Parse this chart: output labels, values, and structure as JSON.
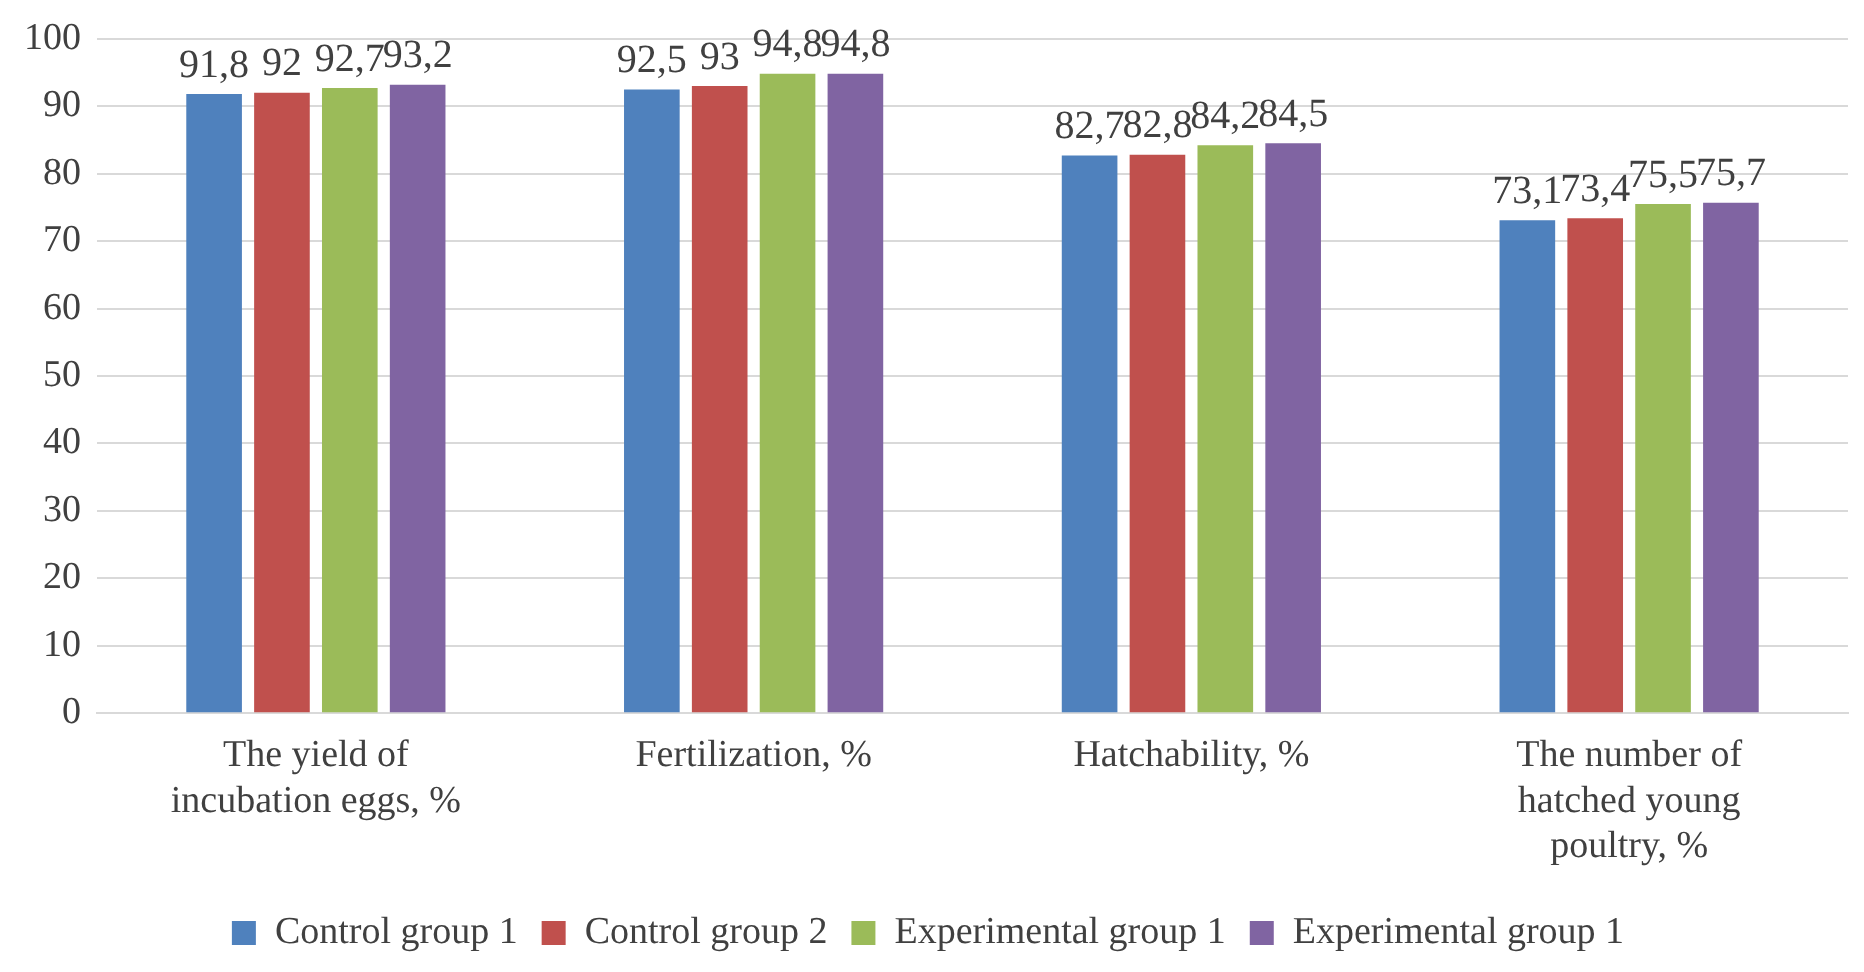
{
  "chart_data": {
    "type": "bar",
    "categories": [
      "The yield of incubation eggs, %",
      "Fertilization, %",
      "Hatchability, %",
      "The number of hatched young poultry, %"
    ],
    "series": [
      {
        "name": "Control group 1",
        "color": "#4f81bd",
        "values": [
          91.8,
          92.5,
          82.7,
          73.1
        ],
        "value_labels": [
          "91,8",
          "92,5",
          "82,7",
          "73,1"
        ]
      },
      {
        "name": "Control group 2",
        "color": "#c0504d",
        "values": [
          92,
          93,
          82.8,
          73.4
        ],
        "value_labels": [
          "92",
          "93",
          "82,8",
          "73,4"
        ]
      },
      {
        "name": "Experimental group 1",
        "color": "#9bbb59",
        "values": [
          92.7,
          94.8,
          84.2,
          75.5
        ],
        "value_labels": [
          "92,7",
          "94,8",
          "84,2",
          "75,5"
        ]
      },
      {
        "name": "Experimental group 1",
        "color": "#8064a2",
        "values": [
          93.2,
          94.8,
          84.5,
          75.7
        ],
        "value_labels": [
          "93,2",
          "94,8",
          "84,5",
          "75,7"
        ]
      }
    ],
    "ylim": [
      0,
      100
    ],
    "yticks": [
      0,
      10,
      20,
      30,
      40,
      50,
      60,
      70,
      80,
      90,
      100
    ],
    "grid": "y",
    "legend": "bottom"
  }
}
